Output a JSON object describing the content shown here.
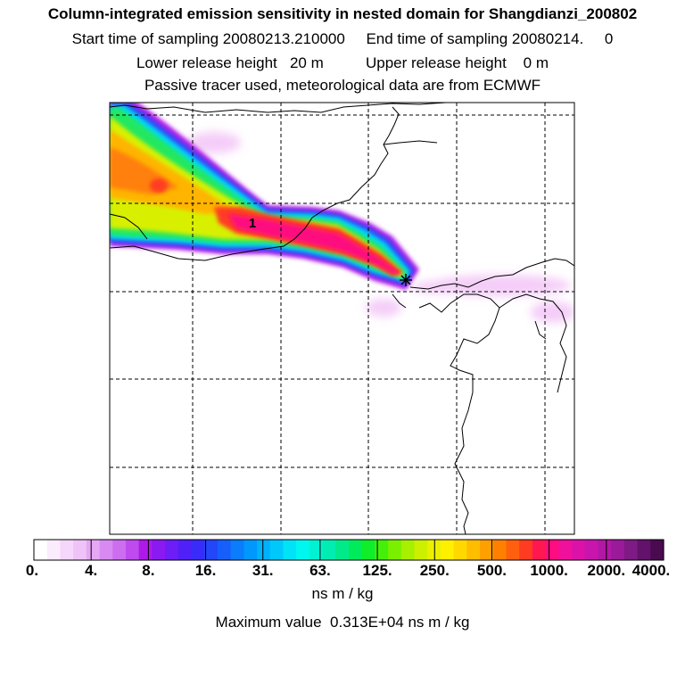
{
  "header": {
    "title": "Column-integrated emission sensitivity in nested domain for Shangdianzi_200802",
    "sampling": "Start time of sampling 20080213.210000     End time of sampling 20080214.     0",
    "release": "Lower release height   20 m          Upper release height    0 m",
    "tracer": "Passive tracer used, meteorological data are from ECMWF"
  },
  "map": {
    "peak_label": "1",
    "station_marker": "asterisk-icon"
  },
  "colorbar": {
    "tick_labels": [
      "0.",
      "4.",
      "8.",
      "16.",
      "31.",
      "63.",
      "125.",
      "250.",
      "500.",
      "1000.",
      "2000.",
      "4000."
    ],
    "colors": [
      "#ffffff",
      "#fbecfd",
      "#f5d7fb",
      "#efc3f8",
      "#e6a8f5",
      "#d98af2",
      "#cc6ef0",
      "#bf4aee",
      "#ae19ea",
      "#8a19f2",
      "#6d1df6",
      "#5020f8",
      "#3a2cf8",
      "#2446f9",
      "#165ffb",
      "#0b7cfb",
      "#0098fb",
      "#00b1fb",
      "#00c8fb",
      "#00e3f7",
      "#00f7f0",
      "#00f2d3",
      "#00edb2",
      "#00ea8a",
      "#00eb5c",
      "#10ed2a",
      "#44ef0a",
      "#7af000",
      "#a6f000",
      "#ccf000",
      "#ecf000",
      "#fff000",
      "#ffd800",
      "#ffbd00",
      "#ffa000",
      "#ff8000",
      "#ff6010",
      "#ff3c22",
      "#ff1850",
      "#fe0c80",
      "#f0109c",
      "#dc12a8",
      "#c815ac",
      "#b218a6",
      "#9a1a9a",
      "#7e1a84",
      "#62126a",
      "#4a0a50"
    ],
    "units": "ns m / kg"
  },
  "footer": {
    "max_value": "Maximum value  0.313E+04 ns m / kg"
  }
}
